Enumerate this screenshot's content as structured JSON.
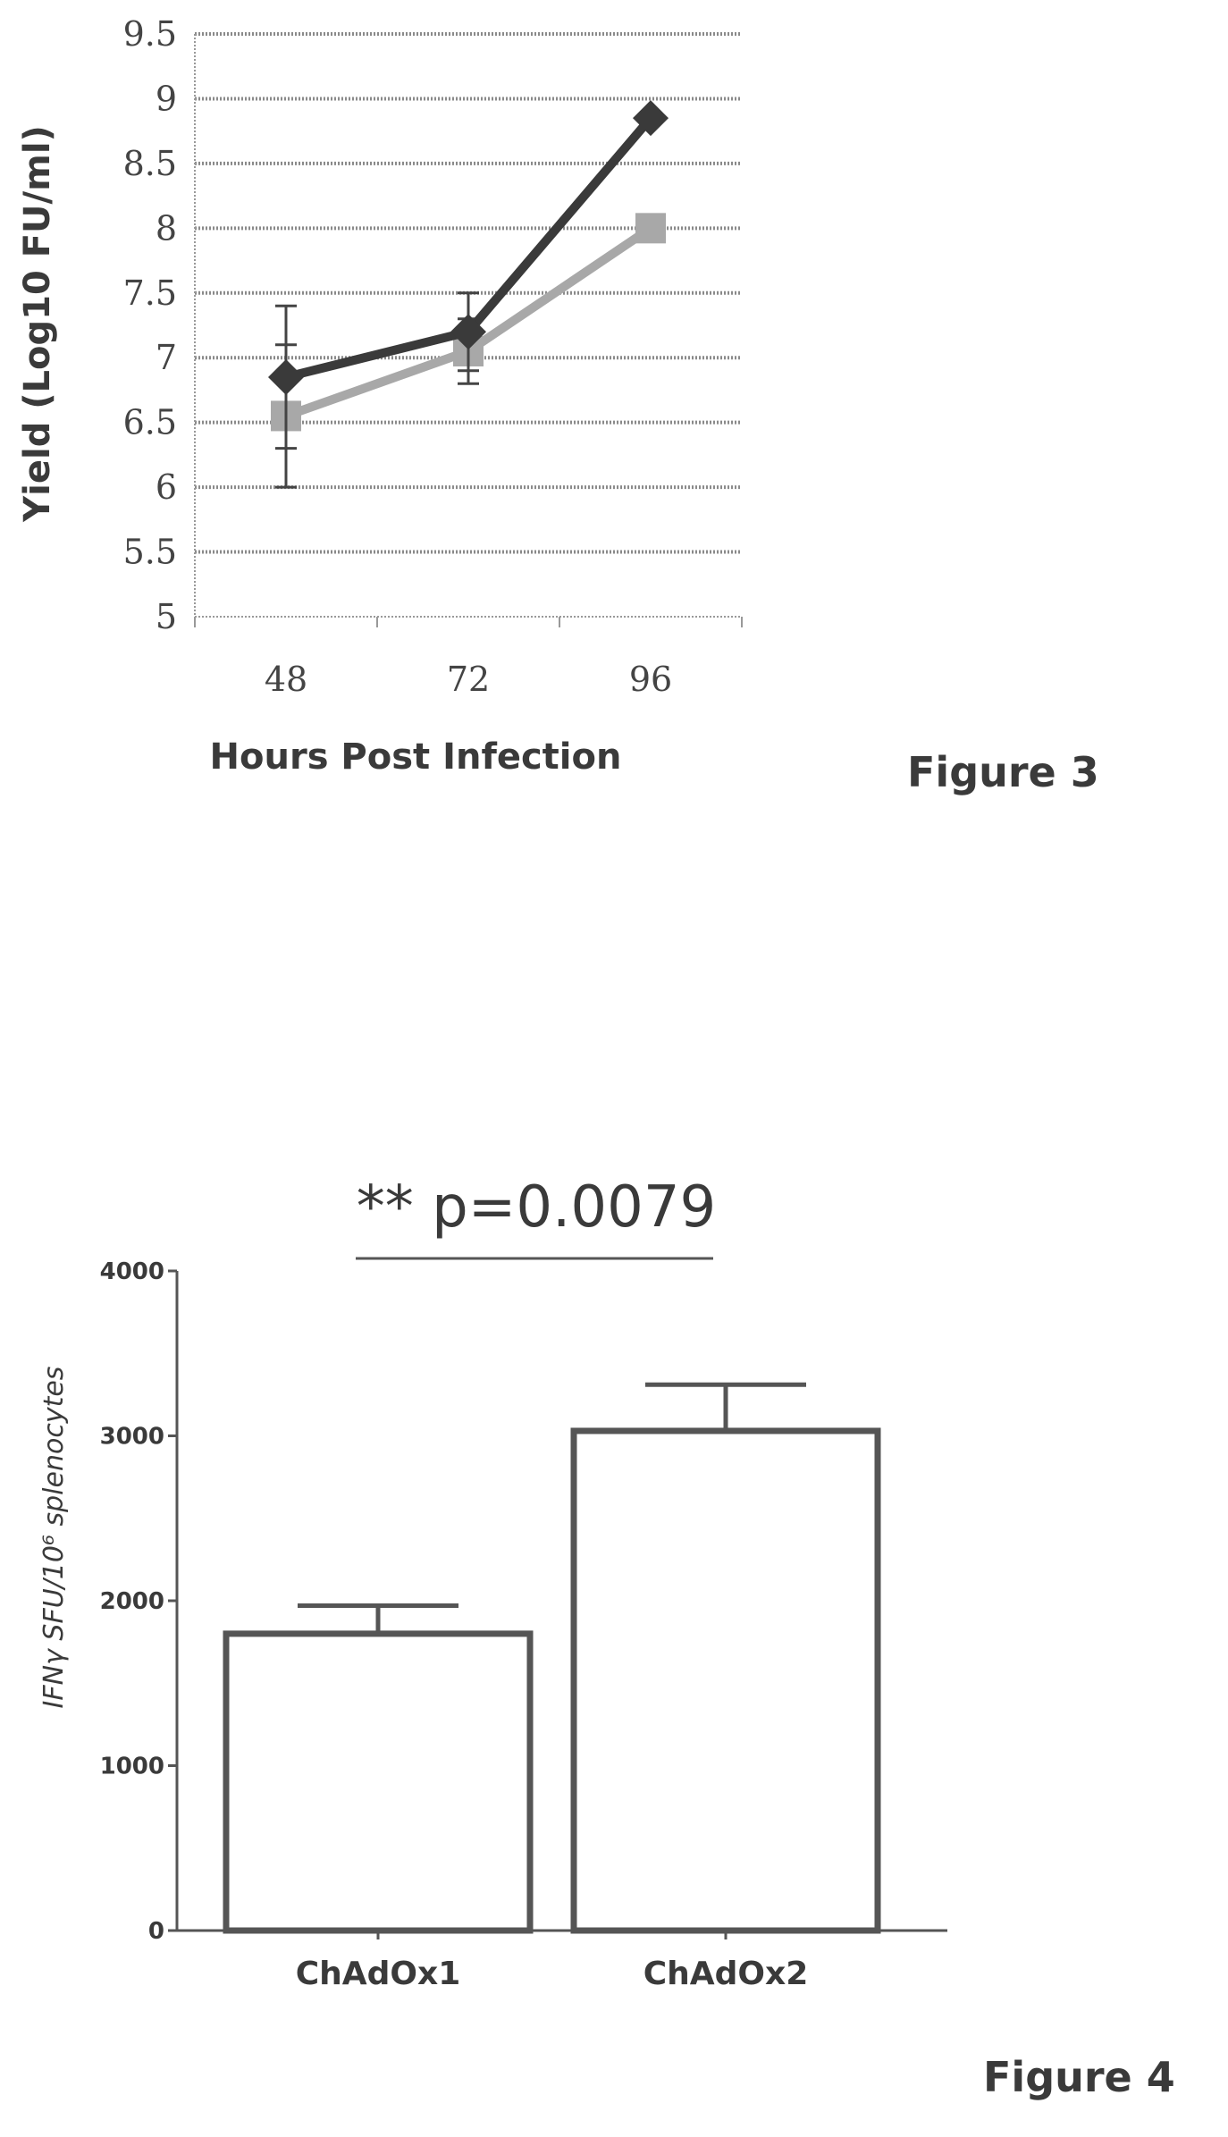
{
  "chart_data": [
    {
      "type": "line",
      "figure_label": "Figure 3",
      "xlabel": "Hours Post Infection",
      "ylabel": "Yield (Log10 FU/ml)",
      "categories": [
        "48",
        "72",
        "96"
      ],
      "ylim": [
        5,
        9.5
      ],
      "yticks": [
        "5",
        "5.5",
        "6",
        "6.5",
        "7",
        "7.5",
        "8",
        "8.5",
        "9",
        "9.5"
      ],
      "grid": true,
      "series": [
        {
          "values": [
            6.85,
            7.2,
            8.85
          ],
          "error": [
            0.55,
            0.3,
            0
          ],
          "color": "#3a3a3a",
          "marker": "diamond"
        },
        {
          "values": [
            6.55,
            7.05,
            8.0
          ],
          "error": [
            0.55,
            0.25,
            0
          ],
          "color": "#a8a8a8",
          "marker": "square"
        }
      ]
    },
    {
      "type": "bar",
      "figure_label": "Figure 4",
      "title": "** p=0.0079",
      "ylabel": "IFNγ SFU/10⁶ splenocytes",
      "categories": [
        "ChAdOx1",
        "ChAdOx2"
      ],
      "values": [
        1800,
        3030
      ],
      "error": [
        170,
        280
      ],
      "ylim": [
        0,
        4000
      ],
      "yticks": [
        "0",
        "1000",
        "2000",
        "3000",
        "4000"
      ],
      "color": "#555555"
    }
  ]
}
